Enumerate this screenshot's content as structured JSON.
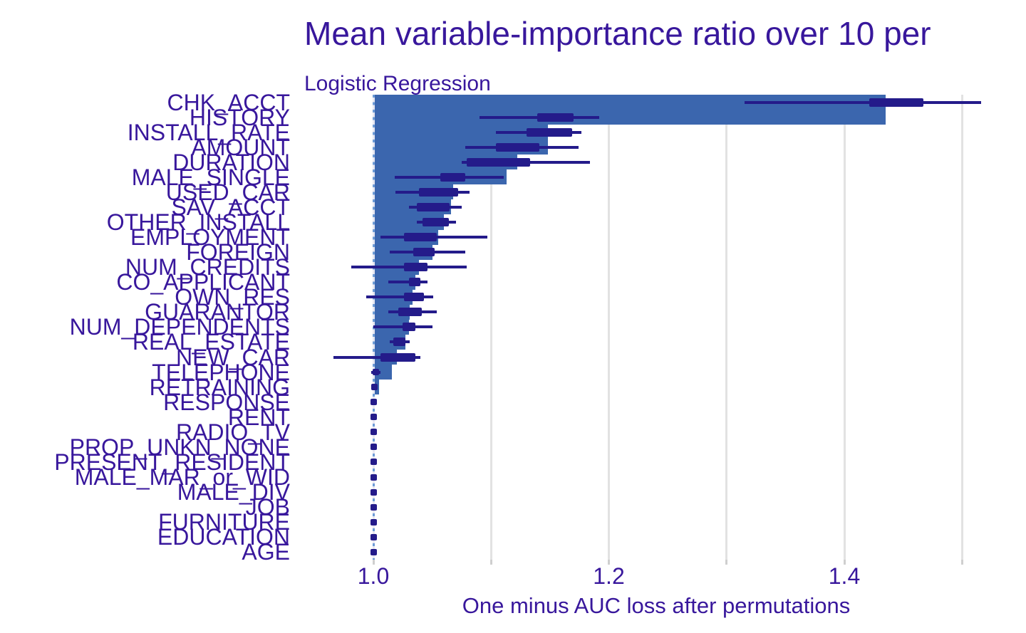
{
  "title": "Mean variable-importance ratio over 10 per",
  "subtitle": "Logistic Regression",
  "xlabel": "One minus AUC loss after permutations",
  "colors": {
    "text": "#38179c",
    "bar": "#3b66ae",
    "box": "#241b8a",
    "gridline": "#e2e2e2",
    "tickmark": "#cfcfcf",
    "dash_blue": "#6d9bd6",
    "dash_pale": "#e8e8f2"
  },
  "chart_data": {
    "type": "bar",
    "orientation": "horizontal",
    "title": "Mean variable-importance ratio over 10 per",
    "subtitle": "Logistic Regression",
    "xlabel": "One minus AUC loss after permutations",
    "ylabel": "",
    "baseline": 1.0,
    "xlim": [
      0.947,
      1.555
    ],
    "grid": "vertical-only",
    "gridline_values": [
      1.1,
      1.2,
      1.3,
      1.4,
      1.5
    ],
    "tick_values": [
      1.0,
      1.1,
      1.2,
      1.3,
      1.4,
      1.5
    ],
    "x_ticks": [
      {
        "value": 1.0,
        "label": "1.0"
      },
      {
        "value": 1.2,
        "label": "1.2"
      },
      {
        "value": 1.4,
        "label": "1.4"
      }
    ],
    "rows": [
      {
        "label": "CHK_ACCT",
        "bar": 1.435,
        "q1": 1.421,
        "q3": 1.467,
        "lo": 1.315,
        "hi": 1.516,
        "med": 1.444
      },
      {
        "label": "HISTORY",
        "bar": 1.435,
        "q1": 1.139,
        "q3": 1.17,
        "lo": 1.09,
        "hi": 1.192,
        "med": 1.155
      },
      {
        "label": "INSTALL_RATE",
        "bar": 1.148,
        "q1": 1.13,
        "q3": 1.169,
        "lo": 1.104,
        "hi": 1.177,
        "med": 1.15
      },
      {
        "label": "AMOUNT",
        "bar": 1.148,
        "q1": 1.104,
        "q3": 1.141,
        "lo": 1.078,
        "hi": 1.174,
        "med": 1.123
      },
      {
        "label": "DURATION",
        "bar": 1.122,
        "q1": 1.079,
        "q3": 1.133,
        "lo": 1.075,
        "hi": 1.184,
        "med": 1.106
      },
      {
        "label": "MALE_SINGLE",
        "bar": 1.113,
        "q1": 1.057,
        "q3": 1.078,
        "lo": 1.018,
        "hi": 1.111,
        "med": 1.068
      },
      {
        "label": "USED_CAR",
        "bar": 1.068,
        "q1": 1.039,
        "q3": 1.072,
        "lo": 1.019,
        "hi": 1.082,
        "med": 1.056
      },
      {
        "label": "SAV_ACCT",
        "bar": 1.066,
        "q1": 1.037,
        "q3": 1.065,
        "lo": 1.03,
        "hi": 1.075,
        "med": 1.051
      },
      {
        "label": "OTHER_INSTALL",
        "bar": 1.06,
        "q1": 1.042,
        "q3": 1.064,
        "lo": 1.037,
        "hi": 1.07,
        "med": 1.053
      },
      {
        "label": "EMPLOYMENT",
        "bar": 1.055,
        "q1": 1.026,
        "q3": 1.054,
        "lo": 1.006,
        "hi": 1.097,
        "med": 1.04
      },
      {
        "label": "FOREIGN",
        "bar": 1.05,
        "q1": 1.034,
        "q3": 1.052,
        "lo": 1.014,
        "hi": 1.078,
        "med": 1.043
      },
      {
        "label": "NUM_CREDITS",
        "bar": 1.039,
        "q1": 1.026,
        "q3": 1.046,
        "lo": 0.981,
        "hi": 1.079,
        "med": 1.036
      },
      {
        "label": "CO_APPLICANT",
        "bar": 1.036,
        "q1": 1.03,
        "q3": 1.04,
        "lo": 1.013,
        "hi": 1.046,
        "med": 1.035
      },
      {
        "label": "OWN_RES",
        "bar": 1.033,
        "q1": 1.026,
        "q3": 1.043,
        "lo": 0.994,
        "hi": 1.051,
        "med": 1.034
      },
      {
        "label": "GUARANTOR",
        "bar": 1.031,
        "q1": 1.021,
        "q3": 1.041,
        "lo": 1.013,
        "hi": 1.054,
        "med": 1.031
      },
      {
        "label": "NUM_DEPENDENTS",
        "bar": 1.03,
        "q1": 1.025,
        "q3": 1.036,
        "lo": 1.0,
        "hi": 1.05,
        "med": 1.03
      },
      {
        "label": "REAL_ESTATE",
        "bar": 1.027,
        "q1": 1.017,
        "q3": 1.027,
        "lo": 1.014,
        "hi": 1.031,
        "med": 1.022
      },
      {
        "label": "NEW_CAR",
        "bar": 1.02,
        "q1": 1.006,
        "q3": 1.036,
        "lo": 0.966,
        "hi": 1.04,
        "med": 1.021
      },
      {
        "label": "TELEPHONE",
        "bar": 1.016,
        "q1": 1.0,
        "q3": 1.004,
        "lo": 0.998,
        "hi": 1.006,
        "med": 1.002
      },
      {
        "label": "RETRAINING",
        "bar": 1.005,
        "q1": 1.0,
        "q3": 1.002,
        "lo": 0.999,
        "hi": 1.003,
        "med": 1.001
      },
      {
        "label": "RESPONSE",
        "bar": 1.0,
        "q1": 1.0,
        "q3": 1.0,
        "lo": 1.0,
        "hi": 1.0,
        "med": 1.0
      },
      {
        "label": "RENT",
        "bar": 1.0,
        "q1": 1.0,
        "q3": 1.0,
        "lo": 1.0,
        "hi": 1.0,
        "med": 1.0
      },
      {
        "label": "RADIO_TV",
        "bar": 1.0,
        "q1": 1.0,
        "q3": 1.0,
        "lo": 1.0,
        "hi": 1.0,
        "med": 1.0
      },
      {
        "label": "PROP_UNKN_NONE",
        "bar": 1.0,
        "q1": 1.0,
        "q3": 1.0,
        "lo": 1.0,
        "hi": 1.0,
        "med": 1.0
      },
      {
        "label": "PRESENT_RESIDENT",
        "bar": 1.0,
        "q1": 1.0,
        "q3": 1.0,
        "lo": 1.0,
        "hi": 1.0,
        "med": 1.0
      },
      {
        "label": "MALE_MAR_or_WID",
        "bar": 1.0,
        "q1": 1.0,
        "q3": 1.0,
        "lo": 1.0,
        "hi": 1.0,
        "med": 1.0
      },
      {
        "label": "MALE_DIV",
        "bar": 1.0,
        "q1": 1.0,
        "q3": 1.0,
        "lo": 1.0,
        "hi": 1.0,
        "med": 1.0
      },
      {
        "label": "JOB",
        "bar": 1.0,
        "q1": 1.0,
        "q3": 1.0,
        "lo": 1.0,
        "hi": 1.0,
        "med": 1.0
      },
      {
        "label": "FURNITURE",
        "bar": 1.0,
        "q1": 1.0,
        "q3": 1.0,
        "lo": 1.0,
        "hi": 1.0,
        "med": 1.0
      },
      {
        "label": "EDUCATION",
        "bar": 1.0,
        "q1": 1.0,
        "q3": 1.0,
        "lo": 1.0,
        "hi": 1.0,
        "med": 1.0
      },
      {
        "label": "AGE",
        "bar": 1.0,
        "q1": 1.0,
        "q3": 1.0,
        "lo": 1.0,
        "hi": 1.0,
        "med": 1.0
      }
    ]
  }
}
